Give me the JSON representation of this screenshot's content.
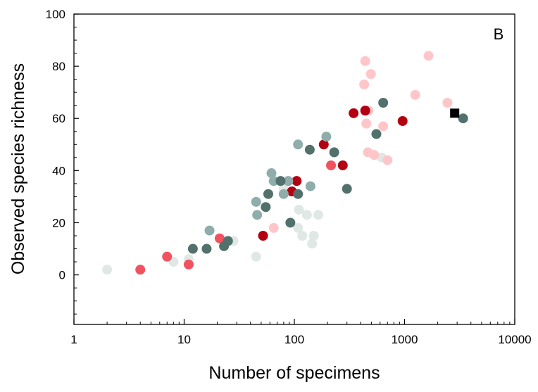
{
  "chart_data": {
    "type": "scatter",
    "panel_label": "B",
    "xlabel": "Number of specimens",
    "ylabel": "Observed species richness",
    "x_scale": "log",
    "xlim": [
      1,
      10000
    ],
    "ylim": [
      -19,
      100
    ],
    "x_ticks": [
      1,
      10,
      100,
      1000,
      10000
    ],
    "x_tick_labels": [
      "1",
      "10",
      "100",
      "1000",
      "10000"
    ],
    "y_ticks": [
      0,
      20,
      40,
      60,
      80,
      100
    ],
    "y_tick_labels": [
      "0",
      "20",
      "40",
      "60",
      "80",
      "100"
    ],
    "grid": false,
    "legend": "none",
    "series": [
      {
        "color": "#e0e8e5",
        "marker": "circle",
        "points": [
          [
            2,
            2
          ],
          [
            8,
            5
          ],
          [
            11,
            6
          ],
          [
            28,
            13
          ],
          [
            45,
            7
          ],
          [
            80,
            33
          ],
          [
            108,
            18
          ],
          [
            110,
            25
          ],
          [
            118,
            15
          ],
          [
            130,
            23
          ],
          [
            145,
            12
          ],
          [
            150,
            15
          ],
          [
            165,
            23
          ],
          [
            620,
            45
          ]
        ]
      },
      {
        "color": "#f25260",
        "marker": "circle",
        "points": [
          [
            4,
            2
          ],
          [
            7,
            7
          ],
          [
            11,
            4
          ],
          [
            21,
            14
          ],
          [
            215,
            42
          ]
        ]
      },
      {
        "color": "#ffc6ca",
        "marker": "circle",
        "points": [
          [
            65,
            18
          ],
          [
            430,
            73
          ],
          [
            440,
            82
          ],
          [
            450,
            58
          ],
          [
            465,
            47
          ],
          [
            470,
            63
          ],
          [
            495,
            77
          ],
          [
            530,
            46
          ],
          [
            640,
            57
          ],
          [
            700,
            44
          ],
          [
            1250,
            69
          ],
          [
            1650,
            84
          ],
          [
            2450,
            66
          ]
        ]
      },
      {
        "color": "#b30012",
        "marker": "circle",
        "points": [
          [
            52,
            15
          ],
          [
            95,
            32
          ],
          [
            105,
            36
          ],
          [
            185,
            50
          ],
          [
            275,
            42
          ],
          [
            345,
            62
          ],
          [
            440,
            63
          ],
          [
            960,
            59
          ]
        ]
      },
      {
        "color": "#8fadaa",
        "marker": "circle",
        "points": [
          [
            17,
            17
          ],
          [
            45,
            28
          ],
          [
            46,
            23
          ],
          [
            62,
            39
          ],
          [
            65,
            36
          ],
          [
            80,
            31
          ],
          [
            88,
            36
          ],
          [
            108,
            50
          ],
          [
            140,
            34
          ],
          [
            195,
            53
          ]
        ]
      },
      {
        "color": "#52716c",
        "marker": "circle",
        "points": [
          [
            12,
            10
          ],
          [
            16,
            10
          ],
          [
            23,
            11
          ],
          [
            25,
            13
          ],
          [
            55,
            26
          ],
          [
            58,
            31
          ],
          [
            75,
            36
          ],
          [
            92,
            20
          ],
          [
            108,
            31
          ],
          [
            138,
            48
          ],
          [
            230,
            47
          ],
          [
            300,
            33
          ],
          [
            555,
            54
          ],
          [
            640,
            66
          ],
          [
            3400,
            60
          ]
        ]
      },
      {
        "color": "#000000",
        "marker": "square",
        "points": [
          [
            2850,
            62
          ]
        ]
      }
    ]
  }
}
